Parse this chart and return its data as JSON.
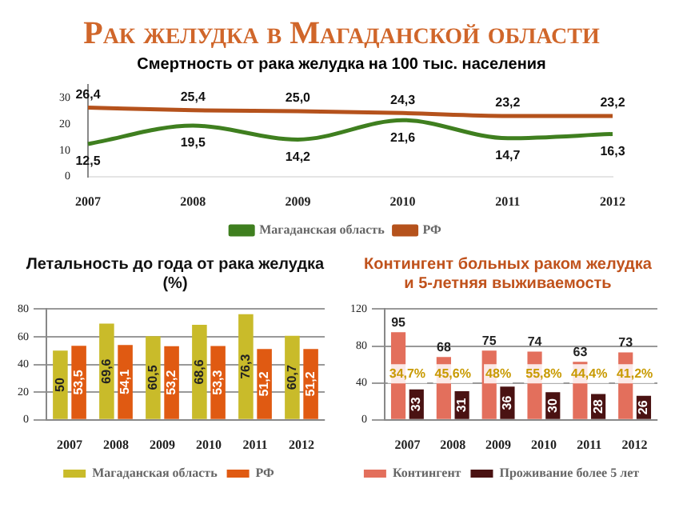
{
  "chart_data": [
    {
      "type": "line",
      "title": "Рак желудка в Магаданской области",
      "subtitle": "Смертность от рака желудка на 100 тыс. населения",
      "categories": [
        "2007",
        "2008",
        "2009",
        "2010",
        "2011",
        "2012"
      ],
      "series": [
        {
          "name": "Магаданская область",
          "color": "#3f7f1f",
          "values": [
            12.5,
            19.5,
            14.2,
            21.6,
            14.7,
            16.3
          ],
          "value_labels": [
            "12,5",
            "19,5",
            "14,2",
            "21,6",
            "14,7",
            "16,3"
          ]
        },
        {
          "name": "РФ",
          "color": "#b5521c",
          "values": [
            26.4,
            25.4,
            25.0,
            24.3,
            23.2,
            23.2
          ],
          "value_labels": [
            "26,4",
            "25,4",
            "25,0",
            "24,3",
            "23,2",
            "23,2"
          ]
        }
      ],
      "ylim": [
        0,
        35
      ],
      "yticks": [
        0,
        10,
        20,
        30
      ],
      "legend": "bottom",
      "marker": "none"
    },
    {
      "type": "bar",
      "title": "Летальность до года от рака желудка (%)",
      "categories": [
        "2007",
        "2008",
        "2009",
        "2010",
        "2011",
        "2012"
      ],
      "series": [
        {
          "name": "Магаданская область",
          "color": "#c9bb2a",
          "values": [
            50,
            69.6,
            60.5,
            68.6,
            76.3,
            60.7
          ],
          "value_labels": [
            "50",
            "69,6",
            "60,5",
            "68,6",
            "76,3",
            "60,7"
          ]
        },
        {
          "name": "РФ",
          "color": "#e05a12",
          "values": [
            53.5,
            54.1,
            53.2,
            53.3,
            51.2,
            51.2
          ],
          "value_labels": [
            "53,5",
            "54,1",
            "53,2",
            "53,3",
            "51,2",
            "51,2"
          ]
        }
      ],
      "ylim": [
        0,
        80
      ],
      "yticks": [
        0,
        20,
        40,
        60,
        80
      ],
      "grid": "y",
      "legend": "bottom"
    },
    {
      "type": "bar",
      "title": "Контингент больных раком желудка\nи 5-летняя выживаемость",
      "categories": [
        "2007",
        "2008",
        "2009",
        "2010",
        "2011",
        "2012"
      ],
      "series": [
        {
          "name": "Контингент",
          "color": "#e36f5c",
          "values": [
            95,
            68,
            75,
            74,
            63,
            73
          ]
        },
        {
          "name": "Проживание более 5 лет",
          "color": "#4a1212",
          "values": [
            33,
            31,
            36,
            30,
            28,
            26
          ]
        }
      ],
      "ylim": [
        0,
        120
      ],
      "yticks": [
        0,
        40,
        80,
        120
      ],
      "grid": "y",
      "data_labels": true,
      "legend": "bottom",
      "annotations": [
        {
          "text": "34,7%",
          "x": "2007",
          "y": 50
        },
        {
          "text": "45,6%",
          "x": "2008",
          "y": 50
        },
        {
          "text": "48%",
          "x": "2009",
          "y": 50
        },
        {
          "text": "55,8%",
          "x": "2010",
          "y": 50
        },
        {
          "text": "44,4%",
          "x": "2011",
          "y": 50
        },
        {
          "text": "41,2%",
          "x": "2012",
          "y": 50
        }
      ]
    }
  ]
}
